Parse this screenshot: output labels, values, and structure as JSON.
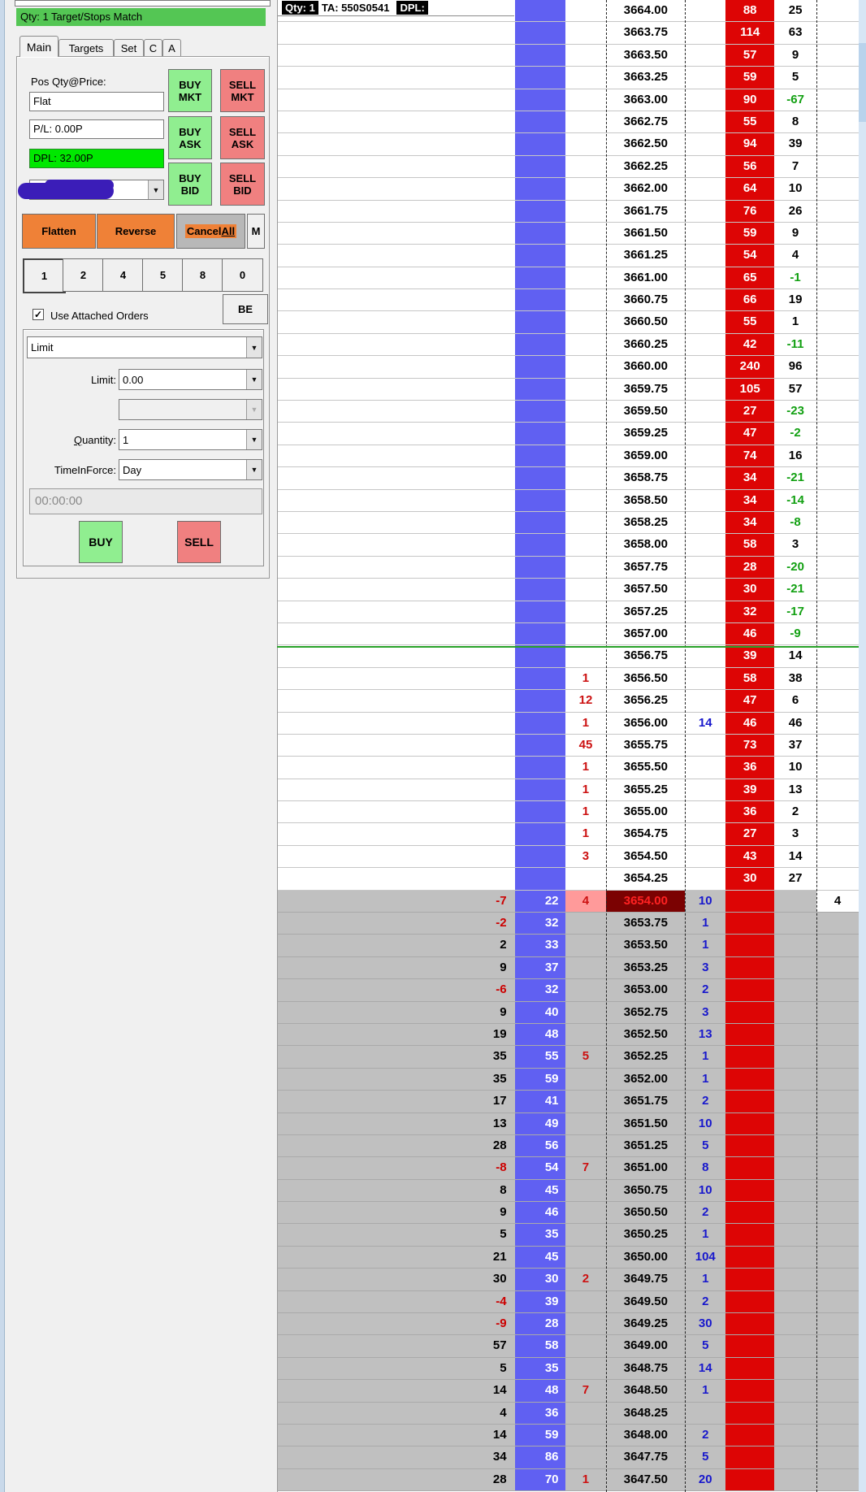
{
  "panel": {
    "status": "Qty: 1 Target/Stops Match",
    "tabs": [
      "Main",
      "Targets",
      "Set",
      "C",
      "A"
    ],
    "selected_tab": "Main",
    "pos_label": "Pos Qty@Price:",
    "pos_value": "Flat",
    "pl_value": "P/L: 0.00P",
    "dpl_value": "DPL: 32.00P",
    "buy_mkt": "BUY\nMKT",
    "sell_mkt": "SELL\nMKT",
    "buy_ask": "BUY\nASK",
    "sell_ask": "SELL\nASK",
    "buy_bid": "BUY\nBID",
    "sell_bid": "SELL\nBID",
    "flatten": "Flatten",
    "reverse": "Reverse",
    "cancel_all_prefix": "Cancel",
    "cancel_all_suffix": "All",
    "m_button": "M",
    "qty_presets": [
      "1",
      "2",
      "4",
      "5",
      "8",
      "0"
    ],
    "qty_selected": "1",
    "use_attached_label": "Use Attached Orders",
    "use_attached_checked": true,
    "be_button": "BE",
    "order_type": "Limit",
    "limit_label": "Limit:",
    "limit_value": "0.00",
    "quantity_label": "Quantity:",
    "quantity_value": "1",
    "tif_label": "TimeInForce:",
    "tif_value": "Day",
    "timer_value": "00:00:00",
    "buy_button": "BUY",
    "sell_button": "SELL",
    "checkmark": "✓",
    "dropdown_arrow": "▼"
  },
  "ladder": {
    "header": {
      "qty": "Qty: 1",
      "ta": "TA: 550S0541",
      "dpl": "DPL:"
    },
    "columns": [
      "pulls",
      "depth-blue",
      "orders",
      "price",
      "bid",
      "ask",
      "delta",
      "volume"
    ],
    "current_index": 40,
    "green_line_index": 29,
    "rows": [
      [
        "3664.00",
        "",
        "",
        "",
        "",
        "88",
        "25",
        ""
      ],
      [
        "3663.75",
        "",
        "",
        "",
        "",
        "114",
        "63",
        ""
      ],
      [
        "3663.50",
        "",
        "",
        "",
        "",
        "57",
        "9",
        ""
      ],
      [
        "3663.25",
        "",
        "",
        "",
        "",
        "59",
        "5",
        ""
      ],
      [
        "3663.00",
        "",
        "",
        "",
        "",
        "90",
        "-67",
        ""
      ],
      [
        "3662.75",
        "",
        "",
        "",
        "",
        "55",
        "8",
        ""
      ],
      [
        "3662.50",
        "",
        "",
        "",
        "",
        "94",
        "39",
        ""
      ],
      [
        "3662.25",
        "",
        "",
        "",
        "",
        "56",
        "7",
        ""
      ],
      [
        "3662.00",
        "",
        "",
        "",
        "",
        "64",
        "10",
        ""
      ],
      [
        "3661.75",
        "",
        "",
        "",
        "",
        "76",
        "26",
        ""
      ],
      [
        "3661.50",
        "",
        "",
        "",
        "",
        "59",
        "9",
        ""
      ],
      [
        "3661.25",
        "",
        "",
        "",
        "",
        "54",
        "4",
        ""
      ],
      [
        "3661.00",
        "",
        "",
        "",
        "",
        "65",
        "-1",
        ""
      ],
      [
        "3660.75",
        "",
        "",
        "",
        "",
        "66",
        "19",
        ""
      ],
      [
        "3660.50",
        "",
        "",
        "",
        "",
        "55",
        "1",
        ""
      ],
      [
        "3660.25",
        "",
        "",
        "",
        "",
        "42",
        "-11",
        ""
      ],
      [
        "3660.00",
        "",
        "",
        "",
        "",
        "240",
        "96",
        ""
      ],
      [
        "3659.75",
        "",
        "",
        "",
        "",
        "105",
        "57",
        ""
      ],
      [
        "3659.50",
        "",
        "",
        "",
        "",
        "27",
        "-23",
        ""
      ],
      [
        "3659.25",
        "",
        "",
        "",
        "",
        "47",
        "-2",
        ""
      ],
      [
        "3659.00",
        "",
        "",
        "",
        "",
        "74",
        "16",
        ""
      ],
      [
        "3658.75",
        "",
        "",
        "",
        "",
        "34",
        "-21",
        ""
      ],
      [
        "3658.50",
        "",
        "",
        "",
        "",
        "34",
        "-14",
        ""
      ],
      [
        "3658.25",
        "",
        "",
        "",
        "",
        "34",
        "-8",
        ""
      ],
      [
        "3658.00",
        "",
        "",
        "",
        "",
        "58",
        "3",
        ""
      ],
      [
        "3657.75",
        "",
        "",
        "",
        "",
        "28",
        "-20",
        ""
      ],
      [
        "3657.50",
        "",
        "",
        "",
        "",
        "30",
        "-21",
        ""
      ],
      [
        "3657.25",
        "",
        "",
        "",
        "",
        "32",
        "-17",
        ""
      ],
      [
        "3657.00",
        "",
        "",
        "",
        "",
        "46",
        "-9",
        ""
      ],
      [
        "3656.75",
        "",
        "",
        "",
        "",
        "39",
        "14",
        ""
      ],
      [
        "3656.50",
        "",
        "",
        "1",
        "",
        "58",
        "38",
        ""
      ],
      [
        "3656.25",
        "",
        "",
        "12",
        "",
        "47",
        "6",
        ""
      ],
      [
        "3656.00",
        "",
        "",
        "1",
        "14",
        "46",
        "46",
        ""
      ],
      [
        "3655.75",
        "",
        "",
        "45",
        "",
        "73",
        "37",
        ""
      ],
      [
        "3655.50",
        "",
        "",
        "1",
        "",
        "36",
        "10",
        ""
      ],
      [
        "3655.25",
        "",
        "",
        "1",
        "",
        "39",
        "13",
        ""
      ],
      [
        "3655.00",
        "",
        "",
        "1",
        "",
        "36",
        "2",
        ""
      ],
      [
        "3654.75",
        "",
        "",
        "1",
        "",
        "27",
        "3",
        ""
      ],
      [
        "3654.50",
        "",
        "",
        "3",
        "",
        "43",
        "14",
        ""
      ],
      [
        "3654.25",
        "",
        "",
        "",
        "",
        "30",
        "27",
        ""
      ],
      [
        "3654.00",
        "-7",
        "22",
        "4",
        "10",
        "",
        "",
        "4"
      ],
      [
        "3653.75",
        "-2",
        "32",
        "",
        "1",
        "",
        "",
        ""
      ],
      [
        "3653.50",
        "2",
        "33",
        "",
        "1",
        "",
        "",
        ""
      ],
      [
        "3653.25",
        "9",
        "37",
        "",
        "3",
        "",
        "",
        ""
      ],
      [
        "3653.00",
        "-6",
        "32",
        "",
        "2",
        "",
        "",
        ""
      ],
      [
        "3652.75",
        "9",
        "40",
        "",
        "3",
        "",
        "",
        ""
      ],
      [
        "3652.50",
        "19",
        "48",
        "",
        "13",
        "",
        "",
        ""
      ],
      [
        "3652.25",
        "35",
        "55",
        "5",
        "1",
        "",
        "",
        ""
      ],
      [
        "3652.00",
        "35",
        "59",
        "",
        "1",
        "",
        "",
        ""
      ],
      [
        "3651.75",
        "17",
        "41",
        "",
        "2",
        "",
        "",
        ""
      ],
      [
        "3651.50",
        "13",
        "49",
        "",
        "10",
        "",
        "",
        ""
      ],
      [
        "3651.25",
        "28",
        "56",
        "",
        "5",
        "",
        "",
        ""
      ],
      [
        "3651.00",
        "-8",
        "54",
        "7",
        "8",
        "",
        "",
        ""
      ],
      [
        "3650.75",
        "8",
        "45",
        "",
        "10",
        "",
        "",
        ""
      ],
      [
        "3650.50",
        "9",
        "46",
        "",
        "2",
        "",
        "",
        ""
      ],
      [
        "3650.25",
        "5",
        "35",
        "",
        "1",
        "",
        "",
        ""
      ],
      [
        "3650.00",
        "21",
        "45",
        "",
        "104",
        "",
        "",
        ""
      ],
      [
        "3649.75",
        "30",
        "30",
        "2",
        "1",
        "",
        "",
        ""
      ],
      [
        "3649.50",
        "-4",
        "39",
        "",
        "2",
        "",
        "",
        ""
      ],
      [
        "3649.25",
        "-9",
        "28",
        "",
        "30",
        "",
        "",
        ""
      ],
      [
        "3649.00",
        "57",
        "58",
        "",
        "5",
        "",
        "",
        ""
      ],
      [
        "3648.75",
        "5",
        "35",
        "",
        "14",
        "",
        "",
        ""
      ],
      [
        "3648.50",
        "14",
        "48",
        "7",
        "1",
        "",
        "",
        ""
      ],
      [
        "3648.25",
        "4",
        "36",
        "",
        "",
        "",
        "",
        ""
      ],
      [
        "3648.00",
        "14",
        "59",
        "",
        "2",
        "",
        "",
        ""
      ],
      [
        "3647.75",
        "34",
        "86",
        "",
        "5",
        "",
        "",
        ""
      ],
      [
        "3647.50",
        "28",
        "70",
        "1",
        "20",
        "",
        "",
        ""
      ]
    ]
  },
  "colors": {
    "buy_green": "#90ee90",
    "sell_red": "#f08080",
    "orange": "#ef8137",
    "dpl_green": "#00e800",
    "status_green": "#54c654",
    "ladder_blue": "#6060f2",
    "ladder_red": "#dd0505",
    "current_price_bg": "#7b0202",
    "current_price_text": "#ff2222",
    "orders_pink": "#ff9a9a",
    "bid_text_blue": "#1818cc",
    "delta_green": "#12a012",
    "bid_zone_gray": "#c0c0c0"
  }
}
